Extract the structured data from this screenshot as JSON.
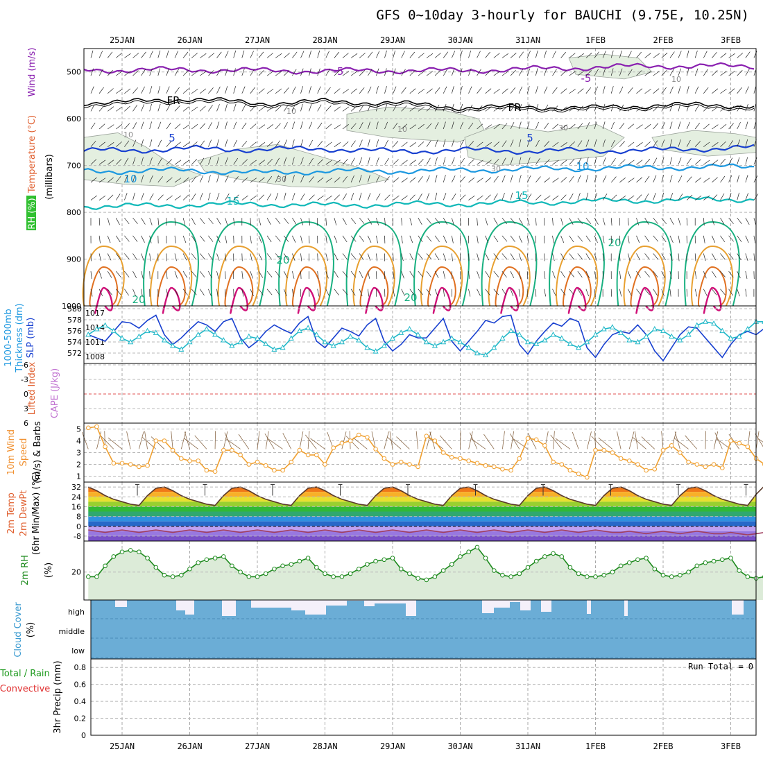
{
  "title": "GFS 0~10day 3-hourly for BAUCHI (9.75E, 10.25N)",
  "dates": [
    "25JAN",
    "26JAN",
    "27JAN",
    "28JAN",
    "29JAN",
    "30JAN",
    "31JAN",
    "1FEB",
    "2FEB",
    "3FEB"
  ],
  "colors": {
    "purple": "#8a20b0",
    "black": "#000000",
    "blue": "#1840d0",
    "lightblue": "#1c98e0",
    "teal": "#10b8b8",
    "green": "#18b080",
    "orange": "#e8a030",
    "darkorange": "#e07020",
    "magenta": "#d01078",
    "rhfill": "#e4efe0",
    "cloud": "#6badd6",
    "cloudclear": "#f4f0fa",
    "wind10m": "#f0a030",
    "barb": "#8b6a4a",
    "rh2m": "#1e8a1e",
    "rh2mfill": "#dcebd8",
    "thick": "#1840d0",
    "slp": "#20b8c8",
    "zero": "#e05050"
  },
  "panels": {
    "upper": {
      "ylabels": [
        "RH (%)",
        "Temperature (°C)",
        "Wind (m/s)",
        "(millibars)"
      ],
      "yticks": [
        500,
        600,
        700,
        800,
        900,
        1000
      ],
      "contour_labels": {
        "t_minus5": "-5",
        "freezing": "FR",
        "t5": "5",
        "t10": "10",
        "t15": "15",
        "t20": "20",
        "rh10": "10",
        "rh30": "30"
      }
    },
    "thick": {
      "ylabels": [
        "1000-500mb",
        "Thickness (dm)",
        "SLP (mb)"
      ],
      "yticks_left": [
        "580",
        "578",
        "576",
        "574",
        "572"
      ],
      "yticks_right": [
        "1017",
        "1014",
        "1011",
        "1008"
      ]
    },
    "cape": {
      "ylabels": [
        "Lifted Index",
        "CAPE (J/kg)"
      ],
      "yticks": [
        "-6",
        "-3",
        "0",
        "3",
        "6"
      ]
    },
    "wind10m": {
      "ylabels": [
        "10m Wind",
        "Speed",
        "(m/s) & Barbs"
      ],
      "yticks": [
        "5",
        "4",
        "3",
        "2",
        "1"
      ]
    },
    "temp2m": {
      "ylabels": [
        "2m Temp",
        "2m DewPt",
        "(6hr Min/Max) (°C)"
      ],
      "yticks": [
        "32",
        "24",
        "16",
        "8",
        "0",
        "-8"
      ]
    },
    "rh2m": {
      "ylabels": [
        "2m RH",
        "(%)"
      ],
      "yticks": [
        "20"
      ]
    },
    "cloud": {
      "ylabels": [
        "Cloud Cover",
        "(%)"
      ],
      "yticks": [
        "high",
        "middle",
        "low"
      ]
    },
    "precip": {
      "ylabels": [
        "Total / Rain",
        "Convective",
        "3hr Precip (mm)"
      ],
      "yticks": [
        "0.8",
        "0.6",
        "0.4",
        "0.2",
        "0"
      ],
      "run_total": "Run Total = 0"
    }
  },
  "chart_data": [
    {
      "type": "line",
      "title": "GFS 0~10day 3-hourly for BAUCHI (9.75E, 10.25N)",
      "name": "Temperature profile (°C) vs pressure (mb)",
      "x": [
        "25JAN",
        "26JAN",
        "27JAN",
        "28JAN",
        "29JAN",
        "30JAN",
        "31JAN",
        "1FEB",
        "2FEB",
        "3FEB"
      ],
      "ylim": [
        450,
        1000
      ],
      "series": [
        {
          "name": "-5",
          "values": [
            496,
            495,
            497,
            498,
            497,
            497,
            494,
            490,
            487,
            488
          ]
        },
        {
          "name": "FR",
          "values": [
            565,
            557,
            567,
            563,
            566,
            576,
            575,
            577,
            570,
            572
          ]
        },
        {
          "name": "5",
          "values": [
            668,
            664,
            666,
            664,
            670,
            667,
            669,
            668,
            667,
            662
          ]
        },
        {
          "name": "10",
          "values": [
            712,
            710,
            716,
            712,
            712,
            710,
            708,
            706,
            704,
            703
          ]
        },
        {
          "name": "15",
          "values": [
            787,
            784,
            782,
            785,
            783,
            782,
            779,
            776,
            774,
            772
          ]
        }
      ]
    },
    {
      "type": "line",
      "title": "1000-500mb Thickness (dm) / SLP (mb)",
      "x_per_day": 8,
      "series": [
        {
          "name": "1000-500mb Thickness (dm)",
          "ylim": [
            572,
            580
          ],
          "values": [
            576.0,
            575.5,
            575.0,
            576.5,
            578.0,
            577.8,
            577.0,
            578.2,
            579.0,
            576.0,
            574.5,
            575.5,
            576.8,
            578.0,
            577.5,
            576.5,
            578.0,
            578.5,
            575.5,
            574.0,
            575.0,
            576.5,
            577.5,
            576.8,
            576.2,
            577.8,
            578.8,
            575.0,
            574.0,
            575.5,
            577.0,
            576.5,
            575.8,
            577.5,
            578.5,
            575.0,
            573.5,
            574.5,
            576.0,
            575.5,
            575.5,
            577.0,
            578.5,
            575.0,
            573.5,
            575.0,
            576.5,
            578.2,
            577.8,
            578.8,
            579.0,
            574.5,
            573.0,
            575.0,
            576.5,
            577.8,
            577.3,
            578.5,
            578.0,
            574.0,
            572.5,
            574.5,
            576.0,
            576.5,
            576.2,
            577.5,
            576.0,
            573.5,
            572.0,
            574.0,
            576.0,
            577.2,
            577.0,
            575.5,
            574.0,
            572.5,
            574.5,
            576.0,
            576.5,
            576.0,
            577.0,
            576.8,
            576.0,
            573.0,
            574.0,
            576.5,
            578.0,
            578.0,
            576.0
          ]
        },
        {
          "name": "SLP (mb)",
          "ylim": [
            1005,
            1019
          ],
          "values": [
            1012,
            1013.5,
            1014.5,
            1013,
            1011,
            1010,
            1011.5,
            1013,
            1012.5,
            1010.5,
            1009,
            1008,
            1010,
            1012,
            1013.5,
            1012,
            1010.5,
            1009,
            1010,
            1011.5,
            1011,
            1009.5,
            1008,
            1008.5,
            1011,
            1013,
            1013.8,
            1012,
            1010,
            1009,
            1010,
            1011.5,
            1010.5,
            1008.5,
            1007.5,
            1009,
            1011,
            1012.5,
            1013.5,
            1012,
            1010,
            1009,
            1010,
            1011,
            1010,
            1008.5,
            1007,
            1006.5,
            1008.5,
            1011,
            1013,
            1012,
            1010,
            1009.5,
            1010.5,
            1012,
            1011,
            1009.5,
            1008.5,
            1010,
            1012,
            1013.5,
            1014,
            1012.5,
            1010.5,
            1010,
            1011.5,
            1013.5,
            1013,
            1011.5,
            1010.5,
            1012,
            1014.5,
            1015.5,
            1015,
            1013,
            1011,
            1011.5,
            1013.5,
            1015.5,
            1015.5,
            1013.5,
            1011.5,
            1011,
            1012.5,
            1011.5,
            1010
          ]
        }
      ]
    },
    {
      "type": "line",
      "title": "Lifted Index / CAPE (J/kg)",
      "ylim": [
        6,
        -6
      ],
      "series": [
        {
          "name": "Lifted Index",
          "values": []
        },
        {
          "name": "CAPE (J/kg)",
          "values": []
        }
      ]
    },
    {
      "type": "line",
      "title": "10m Wind Speed (m/s) & Barbs",
      "x_per_day": 8,
      "ylim": [
        0.5,
        5.5
      ],
      "series": [
        {
          "name": "10m Wind Speed (m/s)",
          "values": [
            5.1,
            5.2,
            3.5,
            2.1,
            2.1,
            2.0,
            1.8,
            1.9,
            4.0,
            4.0,
            3.2,
            2.5,
            2.3,
            2.3,
            1.5,
            1.4,
            3.2,
            3.2,
            2.8,
            2.0,
            2.2,
            1.9,
            1.5,
            1.5,
            2.2,
            3.2,
            2.8,
            2.8,
            2.0,
            3.4,
            3.8,
            4.0,
            4.5,
            4.3,
            3.3,
            2.5,
            2.0,
            2.2,
            2.0,
            1.8,
            4.4,
            4.0,
            3.0,
            2.6,
            2.5,
            2.3,
            2.1,
            1.9,
            1.8,
            1.6,
            1.5,
            2.5,
            4.2,
            4.1,
            3.6,
            2.2,
            2.0,
            1.5,
            1.2,
            0.9,
            3.2,
            3.2,
            3.0,
            2.5,
            2.3,
            2.0,
            1.5,
            1.6,
            3.2,
            3.6,
            3.0,
            2.2,
            2.0,
            1.8,
            2.0,
            1.7,
            4.0,
            3.8,
            3.5,
            2.5,
            2.0,
            2.0,
            2.5,
            2.5,
            1.9,
            1.8,
            3.0,
            3.2
          ]
        }
      ]
    },
    {
      "type": "area",
      "title": "2m Temp / 2m DewPt (6hr Min/Max) (°C)",
      "x_per_day": 8,
      "ylim": [
        -12,
        36
      ],
      "series": [
        {
          "name": "2m Temp (°C)",
          "values": [
            32,
            29,
            25,
            22,
            20,
            18,
            17,
            25,
            31,
            32,
            29,
            25,
            22,
            20,
            18,
            17,
            25,
            31,
            32,
            29,
            25,
            22,
            20,
            18,
            17,
            25,
            31,
            32,
            29,
            25,
            22,
            20,
            18,
            17,
            25,
            31,
            32,
            29,
            25,
            22,
            20,
            18,
            17,
            25,
            31,
            32,
            29,
            25,
            22,
            20,
            18,
            17,
            25,
            31,
            32,
            29,
            25,
            22,
            20,
            18,
            17,
            25,
            31,
            32,
            29,
            25,
            22,
            20,
            18,
            17,
            25,
            31,
            32,
            29,
            25,
            22,
            20,
            18,
            17,
            26,
            33,
            34,
            30,
            26,
            22,
            19,
            17
          ]
        },
        {
          "name": "2m DewPt (°C)",
          "values": [
            -3,
            -4,
            -5,
            -4,
            -3,
            -4,
            -5,
            -4,
            -3,
            -4,
            -5,
            -4,
            -3,
            -4,
            -5,
            -4,
            -3,
            -4,
            -5,
            -4,
            -3,
            -4,
            -5,
            -4,
            -3,
            -4,
            -5,
            -4,
            -3,
            -4,
            -5,
            -4,
            -3,
            -4,
            -5,
            -4,
            -3,
            -4,
            -5,
            -4,
            -3,
            -4,
            -5,
            -4,
            -3,
            -4,
            -5,
            -4,
            -3,
            -4,
            -5,
            -4,
            -3,
            -4,
            -5,
            -4,
            -3,
            -4,
            -5,
            -4,
            -3,
            -4,
            -5,
            -5,
            -4,
            -5,
            -6,
            -5,
            -4,
            -5,
            -6,
            -5,
            -4,
            -5,
            -6,
            -6,
            -5,
            -6,
            -7,
            -6,
            -5,
            -6,
            -7,
            -7,
            -6,
            -7,
            -7
          ]
        }
      ]
    },
    {
      "type": "area",
      "title": "2m RH (%)",
      "x_per_day": 8,
      "ylim": [
        2,
        40
      ],
      "series": [
        {
          "name": "2m RH (%)",
          "values": [
            17,
            17,
            24,
            30,
            33,
            34,
            33,
            29,
            23,
            18,
            17,
            18,
            22,
            26,
            28,
            29,
            30,
            24,
            20,
            17,
            17,
            19,
            22,
            24,
            25,
            27,
            29,
            23,
            19,
            17,
            17,
            19,
            22,
            25,
            27,
            28,
            29,
            22,
            19,
            16,
            15,
            17,
            21,
            25,
            30,
            33,
            36,
            29,
            21,
            18,
            17,
            19,
            23,
            27,
            30,
            32,
            30,
            23,
            19,
            17,
            17,
            18,
            20,
            24,
            26,
            28,
            29,
            22,
            18,
            17,
            18,
            20,
            24,
            26,
            27,
            28,
            29,
            21,
            17,
            16,
            17,
            21,
            24,
            25,
            27,
            28,
            29,
            21,
            17
          ]
        }
      ]
    },
    {
      "type": "bar",
      "title": "Cloud Cover (%)",
      "levels": [
        "high",
        "middle",
        "low"
      ],
      "x_per_day": 8,
      "series": [
        {
          "name": "high cloud cover (%)",
          "values": [
            0,
            0,
            0,
            0,
            0,
            0,
            0,
            0,
            0,
            0,
            0,
            0,
            0,
            0,
            0,
            0,
            0,
            0,
            0,
            0,
            0,
            0,
            0,
            0,
            0,
            0,
            0,
            0,
            0,
            0,
            0,
            0,
            0,
            0,
            0,
            0,
            0,
            0,
            0,
            0,
            0,
            0,
            0,
            0,
            0,
            0,
            0,
            0,
            0,
            0,
            0,
            0,
            0,
            0,
            0,
            0,
            0,
            0,
            0,
            0,
            0,
            0,
            0,
            0,
            0,
            0,
            0,
            0,
            0,
            0,
            0,
            0,
            0,
            0,
            0,
            0,
            0,
            0,
            0,
            0,
            0,
            0,
            0,
            0,
            0,
            0,
            0,
            0,
            0
          ]
        }
      ]
    },
    {
      "type": "bar",
      "title": "Total / Rain / Convective 3hr Precip (mm)",
      "ylim": [
        0,
        0.9
      ],
      "series": [
        {
          "name": "3hr Precip (mm)",
          "values": []
        }
      ],
      "annotations": [
        "Run Total = 0"
      ]
    }
  ]
}
